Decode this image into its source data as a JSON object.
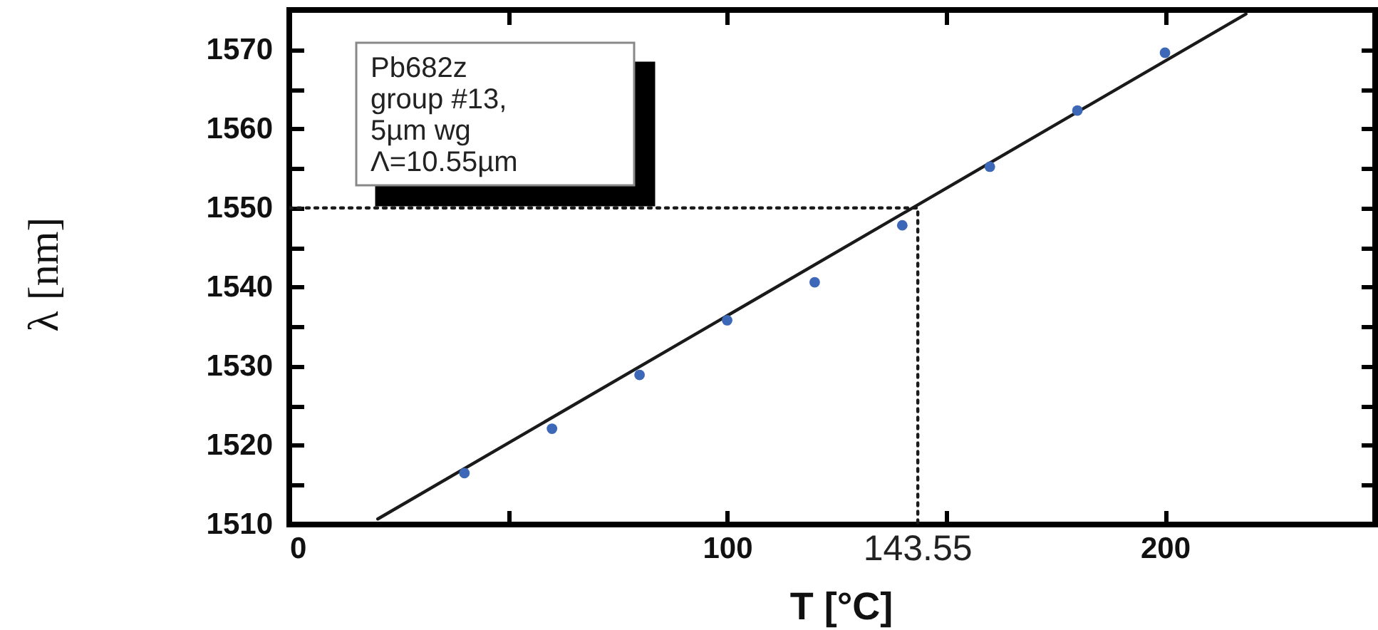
{
  "chart_data": {
    "type": "scatter",
    "xlabel": "T [°C]",
    "ylabel": "λ [nm]",
    "xlim": [
      0,
      248
    ],
    "ylim": [
      1510,
      1575
    ],
    "xticks": [
      0,
      {
        "value": 50,
        "label": null
      },
      100,
      {
        "value": 150,
        "label": null
      },
      200
    ],
    "yticks": [
      1510,
      {
        "value": 1515,
        "label": null
      },
      1520,
      {
        "value": 1525,
        "label": null
      },
      1530,
      {
        "value": 1535,
        "label": null
      },
      1540,
      {
        "value": 1545,
        "label": null
      },
      1550,
      {
        "value": 1555,
        "label": null
      },
      1560,
      {
        "value": 1565,
        "label": null
      },
      1570
    ],
    "series": [
      {
        "type": "line",
        "color": "#1a1a1a",
        "line_style": "solid",
        "x": [
          20.2,
          218.5
        ],
        "values": [
          1510.7,
          1574.5
        ]
      },
      {
        "type": "line",
        "color": "#1a1a1a",
        "line_style": "dotted",
        "x": [
          0,
          143.55,
          143.55
        ],
        "values": [
          1550,
          1550,
          1510
        ]
      },
      {
        "marker": "circle",
        "color": "#3d68b8",
        "x": [
          40,
          60,
          80,
          100,
          120,
          140,
          160,
          180,
          200
        ],
        "values": [
          1516.5,
          1522.1,
          1528.9,
          1535.8,
          1540.6,
          1547.8,
          1555.2,
          1562.3,
          1569.6
        ]
      }
    ],
    "annotations": [
      "Pb682z\ngroup #13,\n5µm wg\nΛ=10.55µm",
      {
        "text": "143.55",
        "x": 143.55,
        "y": 1510
      }
    ]
  }
}
